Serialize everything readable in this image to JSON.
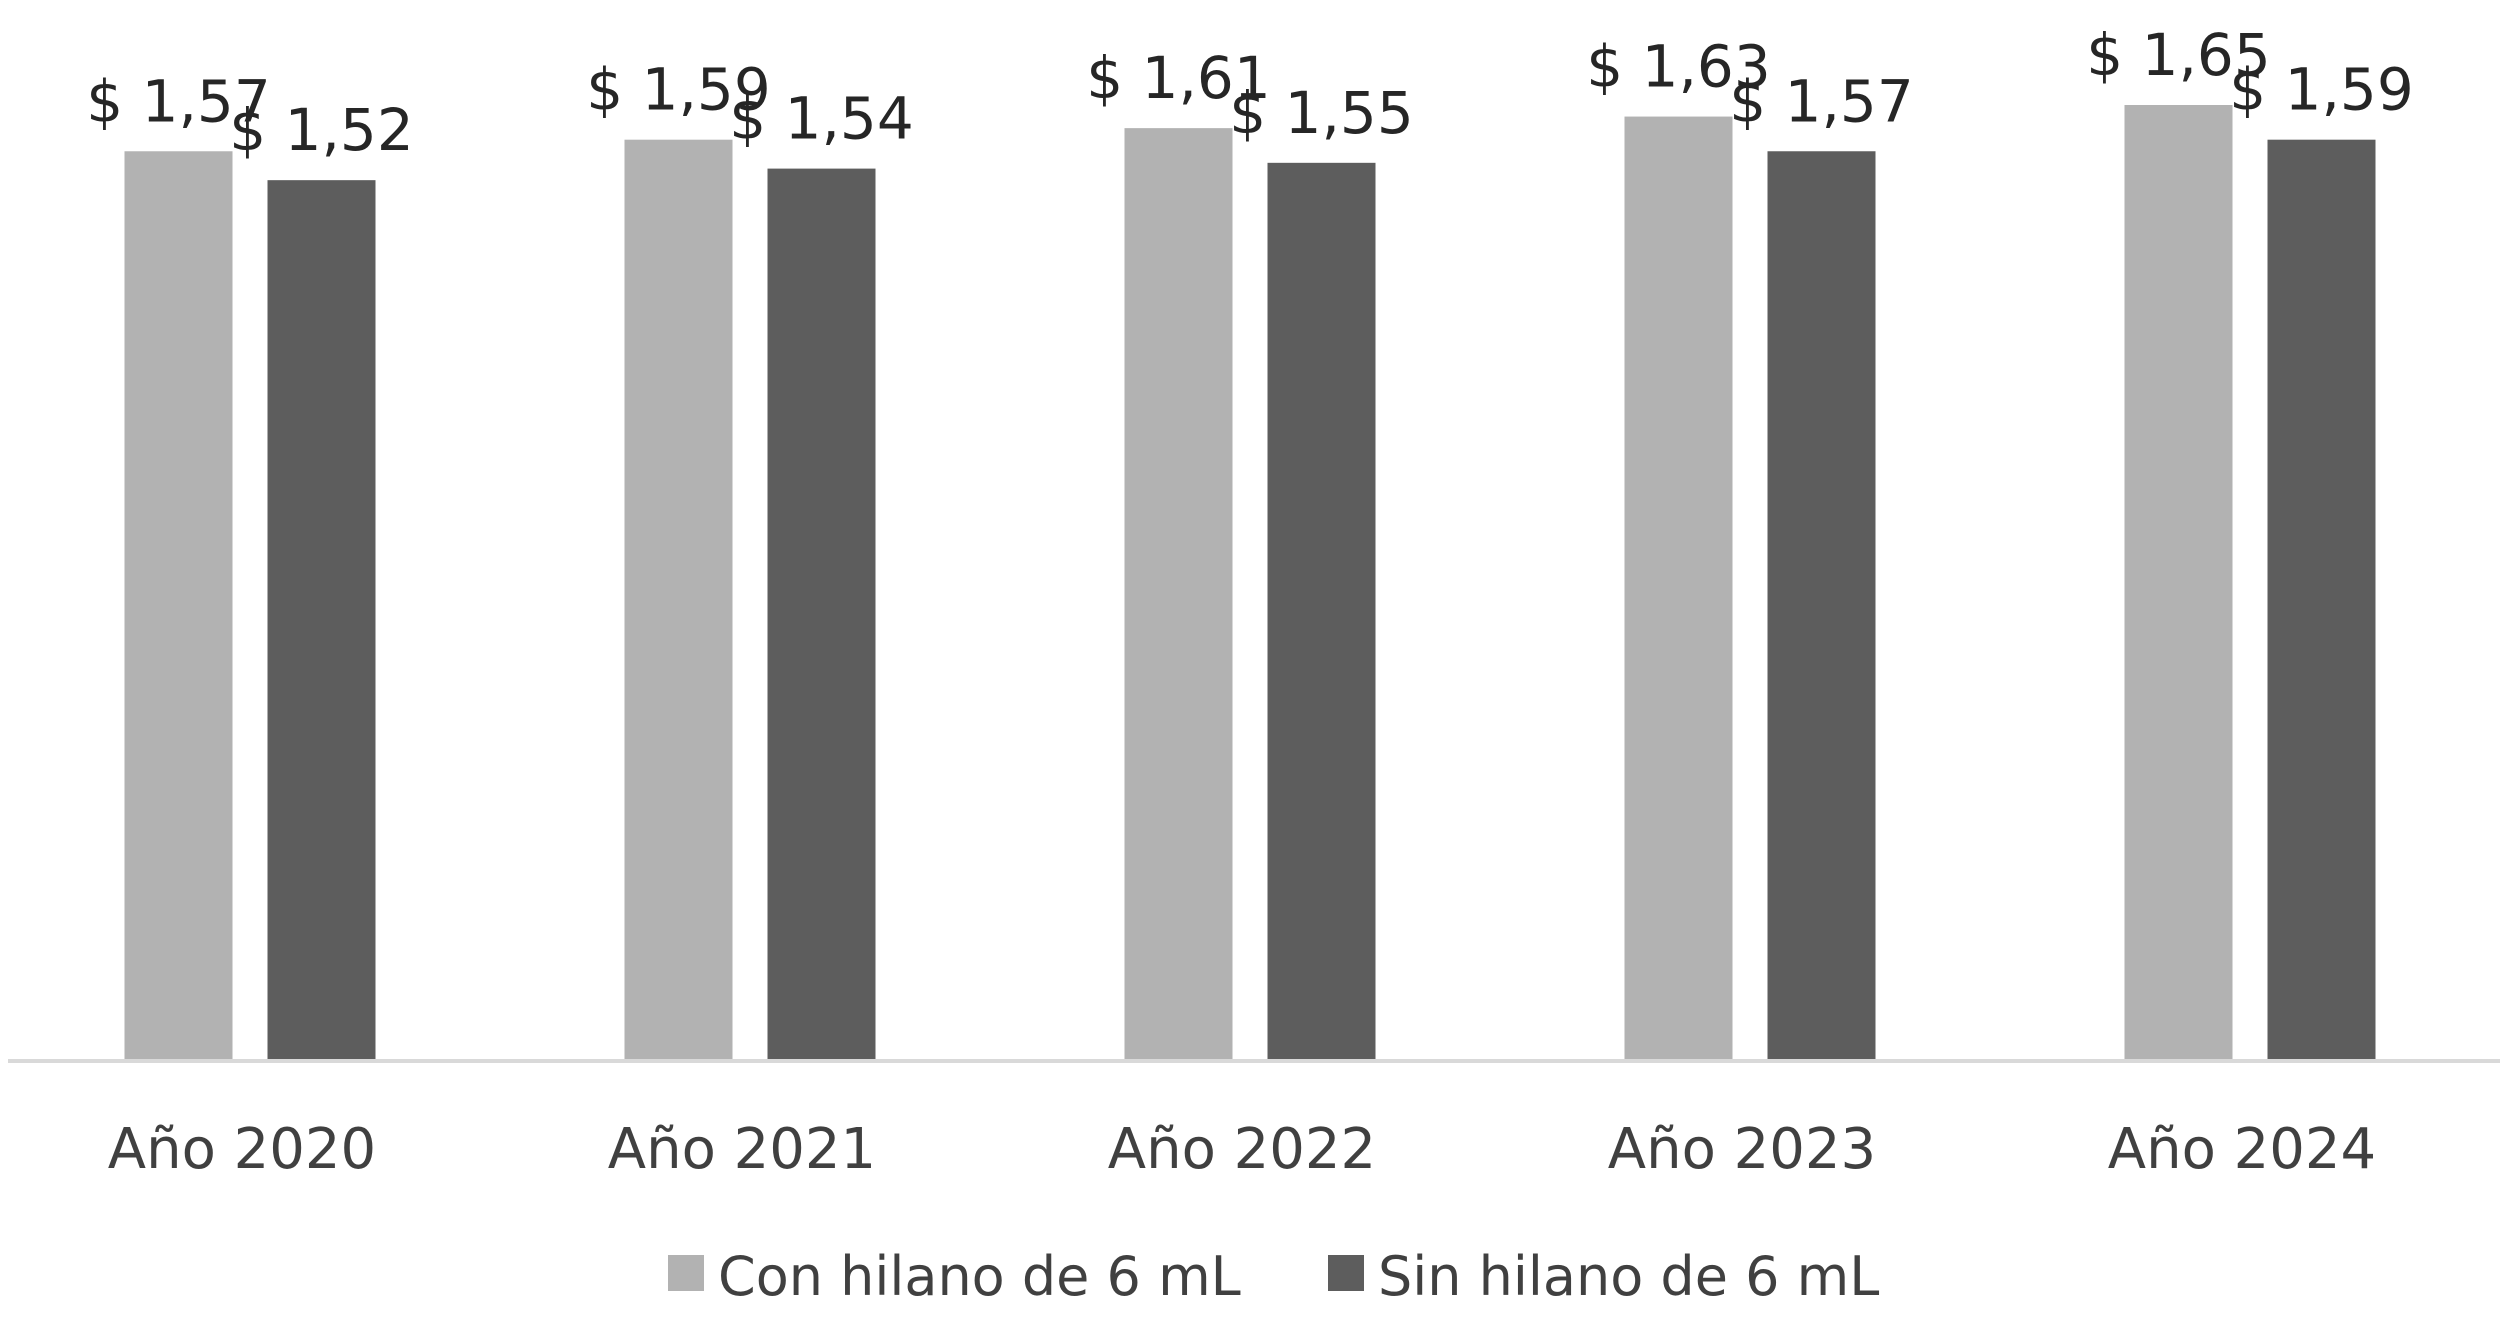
{
  "chart_data": {
    "type": "bar",
    "title": "",
    "xlabel": "",
    "ylabel": "",
    "categories": [
      "Año 2020",
      "Año 2021",
      "Año 2022",
      "Año 2023",
      "Año 2024"
    ],
    "series": [
      {
        "name": "Con hilano de 6 mL",
        "color": "#b2b2b2",
        "values": [
          1.57,
          1.59,
          1.61,
          1.63,
          1.65
        ],
        "labels": [
          "$ 1,57",
          "$ 1,59",
          "$ 1,61",
          "$ 1,63",
          "$ 1,65"
        ]
      },
      {
        "name": "Sin hilano de 6 mL",
        "color": "#5d5d5d",
        "values": [
          1.52,
          1.54,
          1.55,
          1.57,
          1.59
        ],
        "labels": [
          "$ 1,52",
          "$ 1,54",
          "$ 1,55",
          "$ 1,57",
          "$ 1,59"
        ]
      }
    ],
    "ylim": [
      0,
      1.65
    ],
    "grid": false,
    "legend": "bottom-center"
  }
}
